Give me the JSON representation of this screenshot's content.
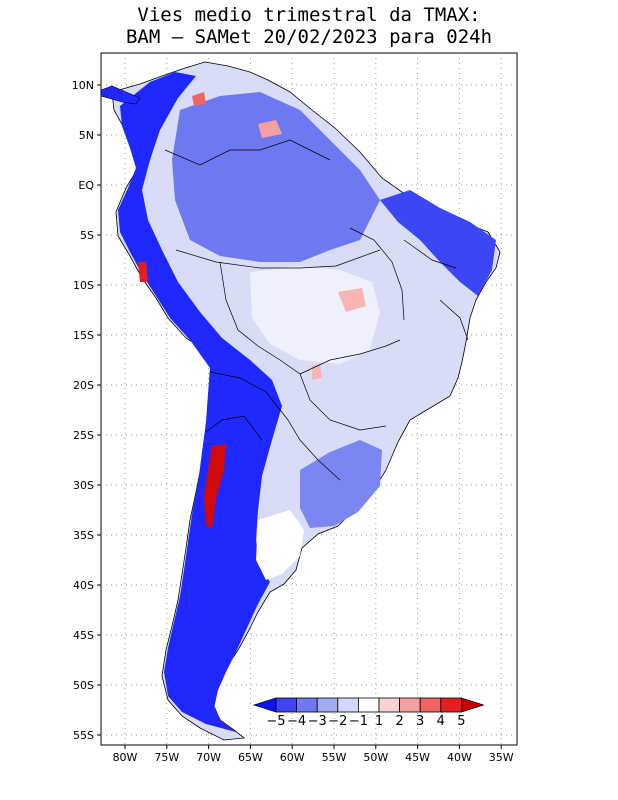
{
  "title": {
    "line1": "Vies medio trimestral da TMAX:",
    "line2": "BAM – SAMet 20/02/2023  para 024h"
  },
  "map": {
    "lat_labels": [
      "10N",
      "5N",
      "EQ",
      "5S",
      "10S",
      "15S",
      "20S",
      "25S",
      "30S",
      "35S",
      "40S",
      "45S",
      "50S",
      "55S"
    ],
    "lon_labels": [
      "80W",
      "75W",
      "70W",
      "65W",
      "60W",
      "55W",
      "50W",
      "45W",
      "40W",
      "35W"
    ]
  },
  "colorbar": {
    "labels": [
      "−5",
      "−4",
      "−3",
      "−2",
      "−1",
      "1",
      "2",
      "3",
      "4",
      "5"
    ],
    "colors": [
      "#0a14ff",
      "#3c46f5",
      "#6e78f0",
      "#a0aaf5",
      "#d2d7fb",
      "#ffffff",
      "#fad2d2",
      "#f5a0a0",
      "#f06464",
      "#e61e1e",
      "#c80000"
    ]
  },
  "colors": {
    "land_neutral": "#d8dcf6",
    "blue_strong": "#1e28ff",
    "blue_mid": "#5a64f0",
    "blue_light": "#a9b0f2",
    "red_strong": "#d20a0a",
    "pink": "#f7b4b4"
  }
}
